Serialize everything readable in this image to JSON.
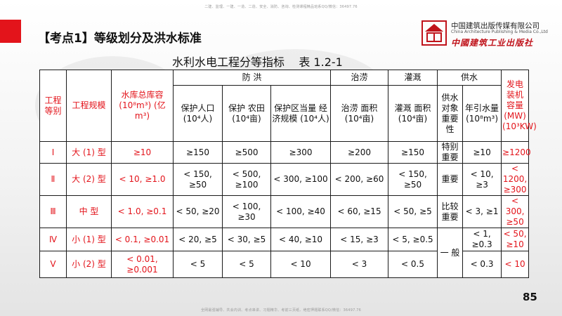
{
  "top_note": "二建、监理、一建、一造、二造、安全、消防、咨询、检测课程精品班系QQ/微信：36497.76",
  "bottom_note": "全网最强辅导、共会内训、考点串讲、习题精华、考前三页纸、绝密押题联系QQ/微信：36497.76",
  "heading": "【考点1】等级划分及洪水标准",
  "logo": {
    "cn": "中国建筑出版传媒有限公司",
    "en": "China Architecture Publishing & Media Co.,Ltd",
    "cal": "中國建筑工业出版社"
  },
  "table_title": "水利水电工程分等指标    表 1.2-1",
  "table": {
    "header": {
      "grade": "工程等别",
      "scale": "工程规模",
      "reservoir": "水库总库容 (10⁸m³) (亿m³)",
      "flood": "防 洪",
      "flood_pop": "保护人口 (10⁴人)",
      "flood_farm": "保护 农田 (10⁴亩)",
      "flood_econ": "保护区当量 经济规模 (10⁴人)",
      "drain_group": "治涝",
      "drain_area": "治涝 面积 (10⁴亩)",
      "irr_group": "灌溉",
      "irr_area": "灌溉 面积 (10⁴亩)",
      "supply_group": "供水",
      "supply_object": "供水 对象 重要 性",
      "supply_volume": "年引水量 (10⁸m³)",
      "power": "发电 装机 容量 (MW) (10³KW)"
    },
    "rows": [
      {
        "grade": "Ⅰ",
        "scale": "大 (1) 型",
        "reservoir": "≥10",
        "pop": "≥150",
        "farm": "≥500",
        "econ": "≥300",
        "drain": "≥200",
        "irr": "≥150",
        "object": "特别 重要",
        "volume": "≥10",
        "power": "≥1200"
      },
      {
        "grade": "Ⅱ",
        "scale": "大 (2) 型",
        "reservoir": "< 10, ≥1.0",
        "pop": "< 150, ≥50",
        "farm": "< 500, ≥100",
        "econ": "< 300, ≥100",
        "drain": "< 200, ≥60",
        "irr": "< 150, ≥50",
        "object": "重要",
        "volume": "< 10, ≥3",
        "power": "< 1200, ≥300"
      },
      {
        "grade": "Ⅲ",
        "scale": "中 型",
        "reservoir": "< 1.0, ≥0.1",
        "pop": "< 50, ≥20",
        "farm": "< 100, ≥30",
        "econ": "< 100, ≥40",
        "drain": "< 60, ≥15",
        "irr": "< 50, ≥5",
        "object": "比较 重要",
        "volume": "< 3, ≥1",
        "power": "< 300, ≥50"
      },
      {
        "grade": "Ⅳ",
        "scale": "小 (1) 型",
        "reservoir": "< 0.1, ≥0.01",
        "pop": "< 20, ≥5",
        "farm": "< 30, ≥5",
        "econ": "< 40, ≥10",
        "drain": "< 15, ≥3",
        "irr": "< 5, ≥0.5",
        "object": "一 般",
        "volume": "< 1, ≥0.3",
        "power": "< 50, ≥10"
      },
      {
        "grade": "Ⅴ",
        "scale": "小 (2) 型",
        "reservoir": "< 0.01, ≥0.001",
        "pop": "< 5",
        "farm": "< 5",
        "econ": "< 10",
        "drain": "< 3",
        "irr": "< 0.5",
        "volume": "< 0.3",
        "power": "< 10"
      }
    ]
  },
  "page_number": "85",
  "colors": {
    "accent": "#e3141b",
    "text": "#111111"
  }
}
